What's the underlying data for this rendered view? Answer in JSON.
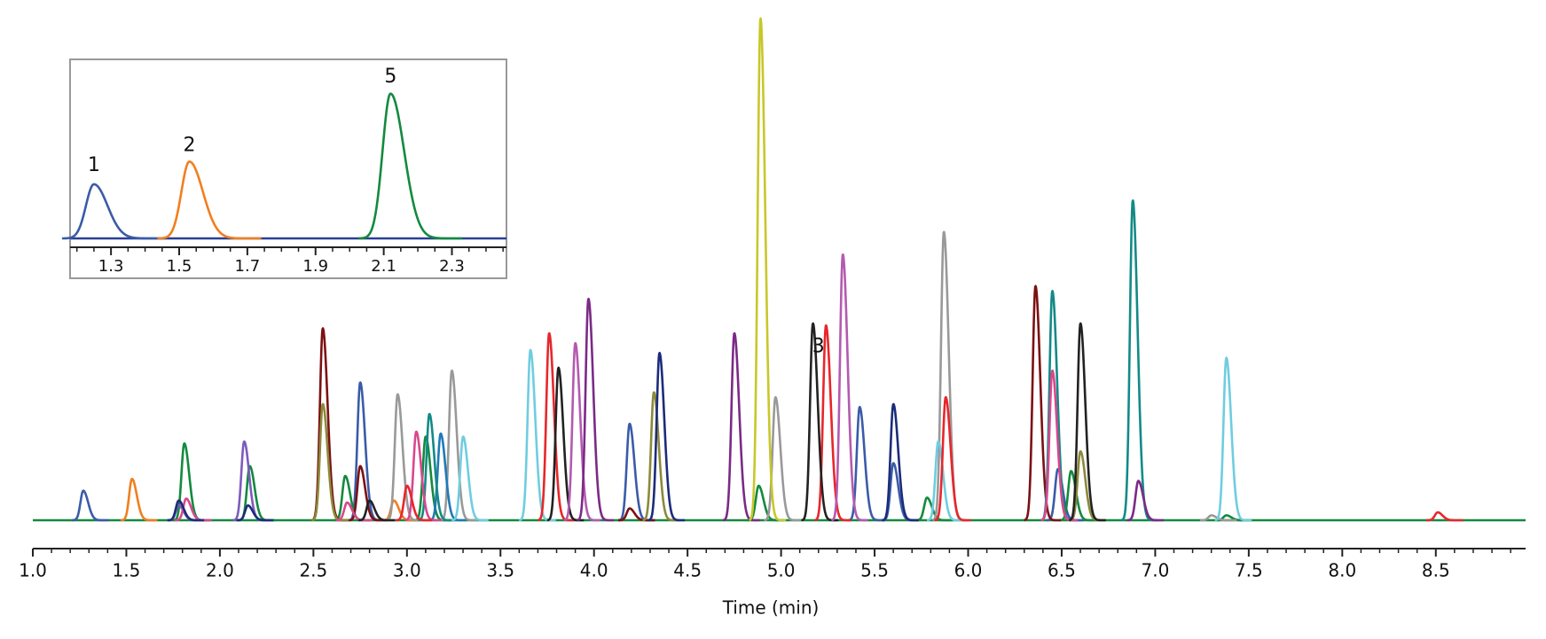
{
  "chart_data": [
    {
      "type": "chromatogram",
      "x_label": "Time (min)",
      "xlim": [
        1.0,
        8.98
      ],
      "xticks": [
        {
          "value": 1,
          "label": "1.0"
        },
        1.5,
        {
          "value": 2,
          "label": "2.0"
        },
        2.5,
        {
          "value": 3,
          "label": "3.0"
        },
        3.5,
        {
          "value": 4,
          "label": "4.0"
        },
        4.5,
        {
          "value": 5,
          "label": "5.0"
        },
        5.5,
        {
          "value": 6,
          "label": "6.0"
        },
        6.5,
        {
          "value": 7,
          "label": "7.0"
        },
        7.5,
        {
          "value": 8,
          "label": "8.0"
        },
        8.5
      ],
      "xminorticks": [
        1.1,
        1.2,
        1.3,
        1.4,
        1.6,
        1.7,
        1.8,
        1.9,
        2.1,
        2.2,
        2.3,
        2.4,
        2.6,
        2.7,
        2.8,
        2.9,
        3.1,
        3.2,
        3.3,
        3.4,
        3.6,
        3.7,
        3.8,
        3.9,
        4.1,
        4.2,
        4.3,
        4.4,
        4.6,
        4.7,
        4.8,
        4.9,
        5.1,
        5.2,
        5.3,
        5.4,
        5.6,
        5.7,
        5.8,
        5.9,
        6.1,
        6.2,
        6.3,
        6.4,
        6.6,
        6.7,
        6.8,
        6.9,
        7.1,
        7.2,
        7.3,
        7.4,
        7.6,
        7.7,
        7.8,
        7.9,
        8.1,
        8.2,
        8.3,
        8.4,
        8.6,
        8.7,
        8.8,
        8.9
      ],
      "series": [
        {
          "color": "#3a5ba8",
          "x": [
            1.27,
            2.75,
            4.19,
            5.42,
            5.6,
            6.48
          ],
          "values": [
            30,
            140,
            98,
            115,
            58,
            52
          ]
        },
        {
          "color": "#f07f1f",
          "x": [
            1.53,
            2.93
          ],
          "values": [
            42,
            20
          ]
        },
        {
          "color": "#138a3e",
          "x": [
            1.81,
            2.16,
            2.67,
            3.1,
            4.88,
            5.78,
            6.55,
            7.38
          ],
          "values": [
            78,
            55,
            45,
            85,
            35,
            23,
            50,
            5
          ]
        },
        {
          "color": "#7d5bbd",
          "x": [
            1.78,
            2.13
          ],
          "values": [
            15,
            80
          ]
        },
        {
          "color": "#7b1113",
          "x": [
            2.55,
            2.75,
            4.19,
            6.36
          ],
          "values": [
            195,
            55,
            12,
            238
          ]
        },
        {
          "color": "#8c8a3a",
          "x": [
            2.55,
            4.32,
            6.6
          ],
          "values": [
            118,
            130,
            70
          ]
        },
        {
          "color": "#999999",
          "x": [
            2.95,
            3.24,
            4.97,
            5.87,
            7.3
          ],
          "values": [
            128,
            152,
            125,
            293,
            5
          ]
        },
        {
          "color": "#1f7ab8",
          "x": [
            3.18
          ],
          "values": [
            88
          ]
        },
        {
          "color": "#138a87",
          "x": [
            3.12,
            6.45,
            6.88
          ],
          "values": [
            108,
            233,
            325
          ]
        },
        {
          "color": "#d9478e",
          "x": [
            1.82,
            2.68,
            3.05,
            6.45
          ],
          "values": [
            22,
            18,
            90,
            152
          ]
        },
        {
          "color": "#6fcde0",
          "x": [
            3.3,
            3.66,
            5.84,
            7.38
          ],
          "values": [
            85,
            173,
            80,
            165
          ]
        },
        {
          "color": "#e8262b",
          "x": [
            3.0,
            3.76,
            5.24,
            5.88,
            8.51
          ],
          "values": [
            35,
            190,
            198,
            125,
            8
          ]
        },
        {
          "color": "#222222",
          "x": [
            2.8,
            3.81,
            5.17,
            6.6
          ],
          "values": [
            20,
            155,
            200,
            200
          ]
        },
        {
          "color": "#b45ab0",
          "x": [
            3.9,
            5.33
          ],
          "values": [
            180,
            270
          ]
        },
        {
          "color": "#7b2a86",
          "x": [
            3.97,
            4.75,
            6.91
          ],
          "values": [
            225,
            190,
            40
          ]
        },
        {
          "color": "#1c2c7a",
          "x": [
            1.78,
            2.15,
            4.35,
            5.6
          ],
          "values": [
            20,
            15,
            170,
            118
          ]
        },
        {
          "color": "#c8c72a",
          "x": [
            4.89
          ],
          "values": [
            510
          ]
        }
      ],
      "annotations": [
        {
          "text": "3",
          "x": 5.2,
          "y": 176
        }
      ]
    },
    {
      "type": "chromatogram",
      "xlim": [
        1.18,
        2.46
      ],
      "xticks": [
        1.3,
        1.5,
        1.7,
        1.9,
        2.1,
        2.3
      ],
      "xminorticks": [
        1.2,
        1.25,
        1.35,
        1.4,
        1.45,
        1.55,
        1.6,
        1.65,
        1.75,
        1.8,
        1.85,
        1.95,
        2.0,
        2.05,
        2.15,
        2.2,
        2.25,
        2.35,
        2.4,
        2.45
      ],
      "series": [
        {
          "color": "#3a5ba8",
          "x": [
            1.25
          ],
          "values": [
            55
          ]
        },
        {
          "color": "#f07f1f",
          "x": [
            1.53
          ],
          "values": [
            78
          ]
        },
        {
          "color": "#138a3e",
          "x": [
            2.12
          ],
          "values": [
            147
          ]
        }
      ],
      "annotations": [
        {
          "text": "1",
          "x": 1.25,
          "y": 74
        },
        {
          "text": "2",
          "x": 1.53,
          "y": 94
        },
        {
          "text": "5",
          "x": 2.12,
          "y": 164
        }
      ]
    }
  ]
}
